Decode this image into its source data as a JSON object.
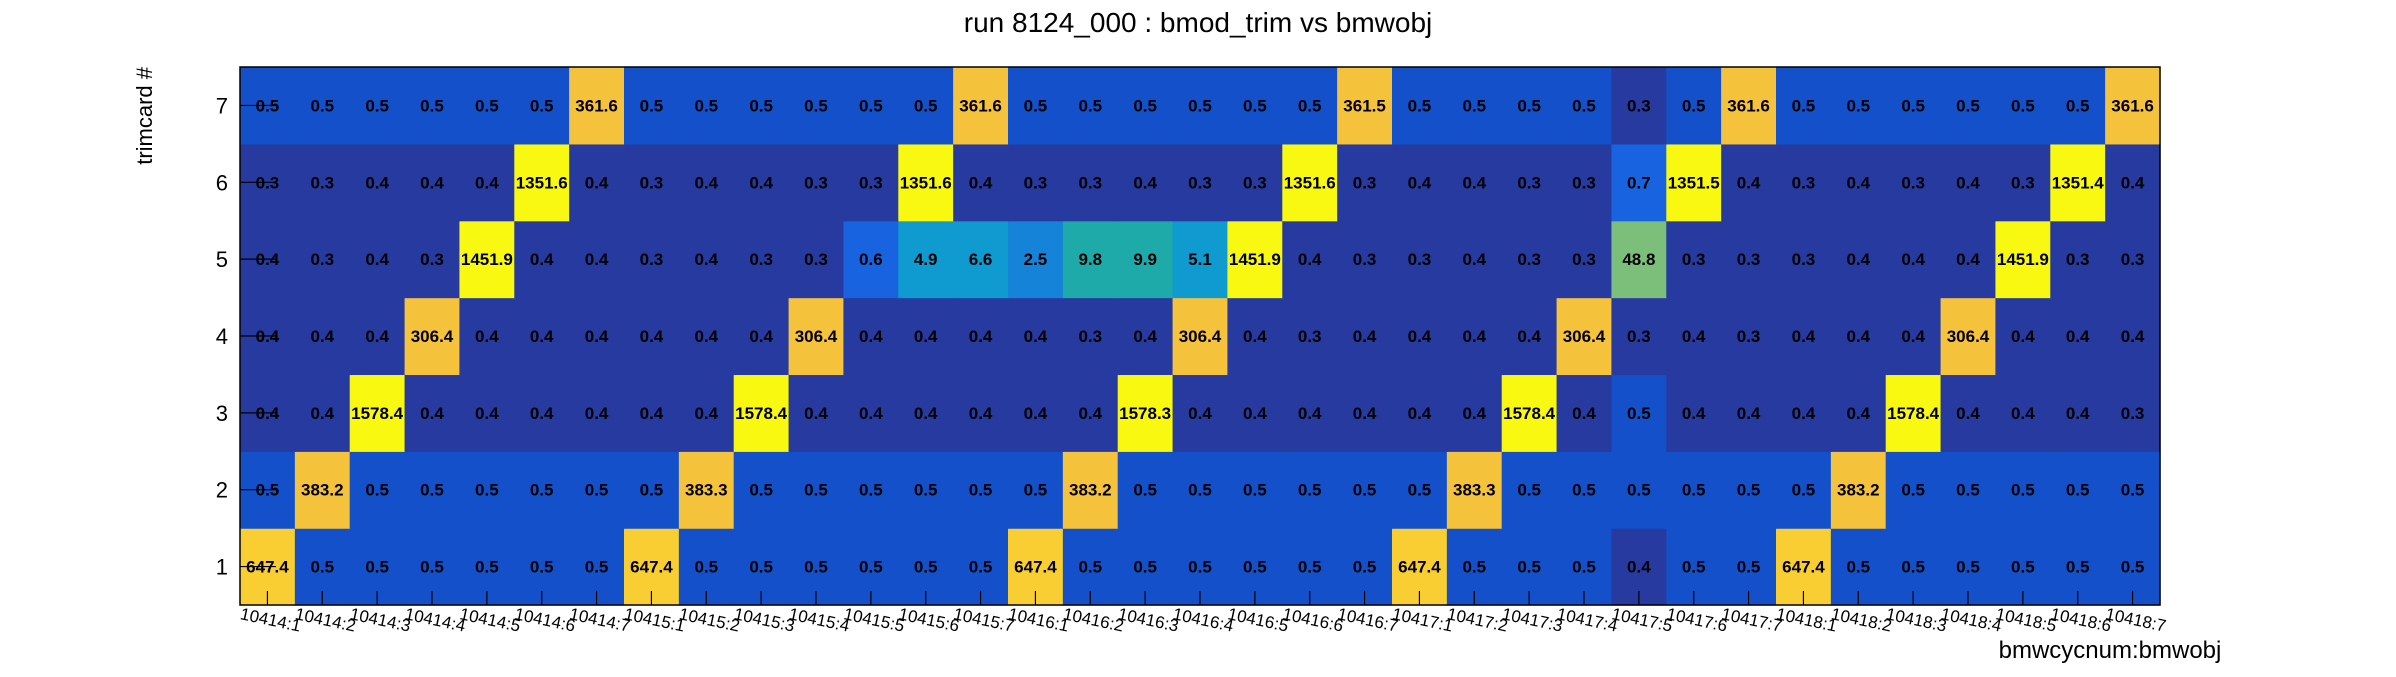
{
  "chart_data": {
    "type": "heatmap",
    "title": "run 8124_000 : bmod_trim vs bmwobj",
    "xlabel": "bmwcycnum:bmwobj",
    "ylabel": "trimcard #",
    "x_categories": [
      "10414:1",
      "10414:2",
      "10414:3",
      "10414:4",
      "10414:5",
      "10414:6",
      "10414:7",
      "10415:1",
      "10415:2",
      "10415:3",
      "10415:4",
      "10415:5",
      "10415:6",
      "10415:7",
      "10416:1",
      "10416:2",
      "10416:3",
      "10416:4",
      "10416:5",
      "10416:6",
      "10416:7",
      "10417:1",
      "10417:2",
      "10417:3",
      "10417:4",
      "10417:5",
      "10417:6",
      "10417:7",
      "10418:1",
      "10418:2",
      "10418:3",
      "10418:4",
      "10418:5",
      "10418:6",
      "10418:7"
    ],
    "y_categories": [
      "1",
      "2",
      "3",
      "4",
      "5",
      "6",
      "7"
    ],
    "z_range": [
      0,
      1578.4
    ],
    "grid": false,
    "cells": [
      [
        "647.4",
        "0.5",
        "0.5",
        "0.5",
        "0.5",
        "0.5",
        "0.5",
        "647.4",
        "0.5",
        "0.5",
        "0.5",
        "0.5",
        "0.5",
        "0.5",
        "647.4",
        "0.5",
        "0.5",
        "0.5",
        "0.5",
        "0.5",
        "0.5",
        "647.4",
        "0.5",
        "0.5",
        "0.5",
        "0.4",
        "0.5",
        "0.5",
        "647.4",
        "0.5",
        "0.5",
        "0.5",
        "0.5",
        "0.5",
        "0.5"
      ],
      [
        "0.5",
        "383.2",
        "0.5",
        "0.5",
        "0.5",
        "0.5",
        "0.5",
        "0.5",
        "383.3",
        "0.5",
        "0.5",
        "0.5",
        "0.5",
        "0.5",
        "0.5",
        "383.2",
        "0.5",
        "0.5",
        "0.5",
        "0.5",
        "0.5",
        "0.5",
        "383.3",
        "0.5",
        "0.5",
        "0.5",
        "0.5",
        "0.5",
        "0.5",
        "383.2",
        "0.5",
        "0.5",
        "0.5",
        "0.5",
        "0.5"
      ],
      [
        "0.4",
        "0.4",
        "1578.4",
        "0.4",
        "0.4",
        "0.4",
        "0.4",
        "0.4",
        "0.4",
        "1578.4",
        "0.4",
        "0.4",
        "0.4",
        "0.4",
        "0.4",
        "0.4",
        "1578.3",
        "0.4",
        "0.4",
        "0.4",
        "0.4",
        "0.4",
        "0.4",
        "1578.4",
        "0.4",
        "0.5",
        "0.4",
        "0.4",
        "0.4",
        "0.4",
        "1578.4",
        "0.4",
        "0.4",
        "0.4",
        "0.3"
      ],
      [
        "0.4",
        "0.4",
        "0.4",
        "306.4",
        "0.4",
        "0.4",
        "0.4",
        "0.4",
        "0.4",
        "0.4",
        "306.4",
        "0.4",
        "0.4",
        "0.4",
        "0.4",
        "0.3",
        "0.4",
        "306.4",
        "0.4",
        "0.3",
        "0.4",
        "0.4",
        "0.4",
        "0.4",
        "306.4",
        "0.3",
        "0.4",
        "0.3",
        "0.4",
        "0.4",
        "0.4",
        "306.4",
        "0.4",
        "0.4",
        "0.4"
      ],
      [
        "0.4",
        "0.3",
        "0.4",
        "0.3",
        "1451.9",
        "0.4",
        "0.4",
        "0.3",
        "0.4",
        "0.3",
        "0.3",
        "0.6",
        "4.9",
        "6.6",
        "2.5",
        "9.8",
        "9.9",
        "5.1",
        "1451.9",
        "0.4",
        "0.3",
        "0.3",
        "0.4",
        "0.3",
        "0.3",
        "48.8",
        "0.3",
        "0.3",
        "0.3",
        "0.4",
        "0.4",
        "0.4",
        "1451.9",
        "0.3",
        "0.3"
      ],
      [
        "0.3",
        "0.3",
        "0.4",
        "0.4",
        "0.4",
        "1351.6",
        "0.4",
        "0.3",
        "0.4",
        "0.4",
        "0.3",
        "0.3",
        "1351.6",
        "0.4",
        "0.3",
        "0.3",
        "0.4",
        "0.3",
        "0.3",
        "1351.6",
        "0.3",
        "0.4",
        "0.4",
        "0.3",
        "0.3",
        "0.7",
        "1351.5",
        "0.4",
        "0.3",
        "0.4",
        "0.3",
        "0.4",
        "0.3",
        "1351.4",
        "0.4"
      ],
      [
        "0.5",
        "0.5",
        "0.5",
        "0.5",
        "0.5",
        "0.5",
        "361.6",
        "0.5",
        "0.5",
        "0.5",
        "0.5",
        "0.5",
        "0.5",
        "361.6",
        "0.5",
        "0.5",
        "0.5",
        "0.5",
        "0.5",
        "0.5",
        "361.5",
        "0.5",
        "0.5",
        "0.5",
        "0.5",
        "0.3",
        "0.5",
        "361.6",
        "0.5",
        "0.5",
        "0.5",
        "0.5",
        "0.5",
        "0.5",
        "361.6"
      ]
    ]
  }
}
